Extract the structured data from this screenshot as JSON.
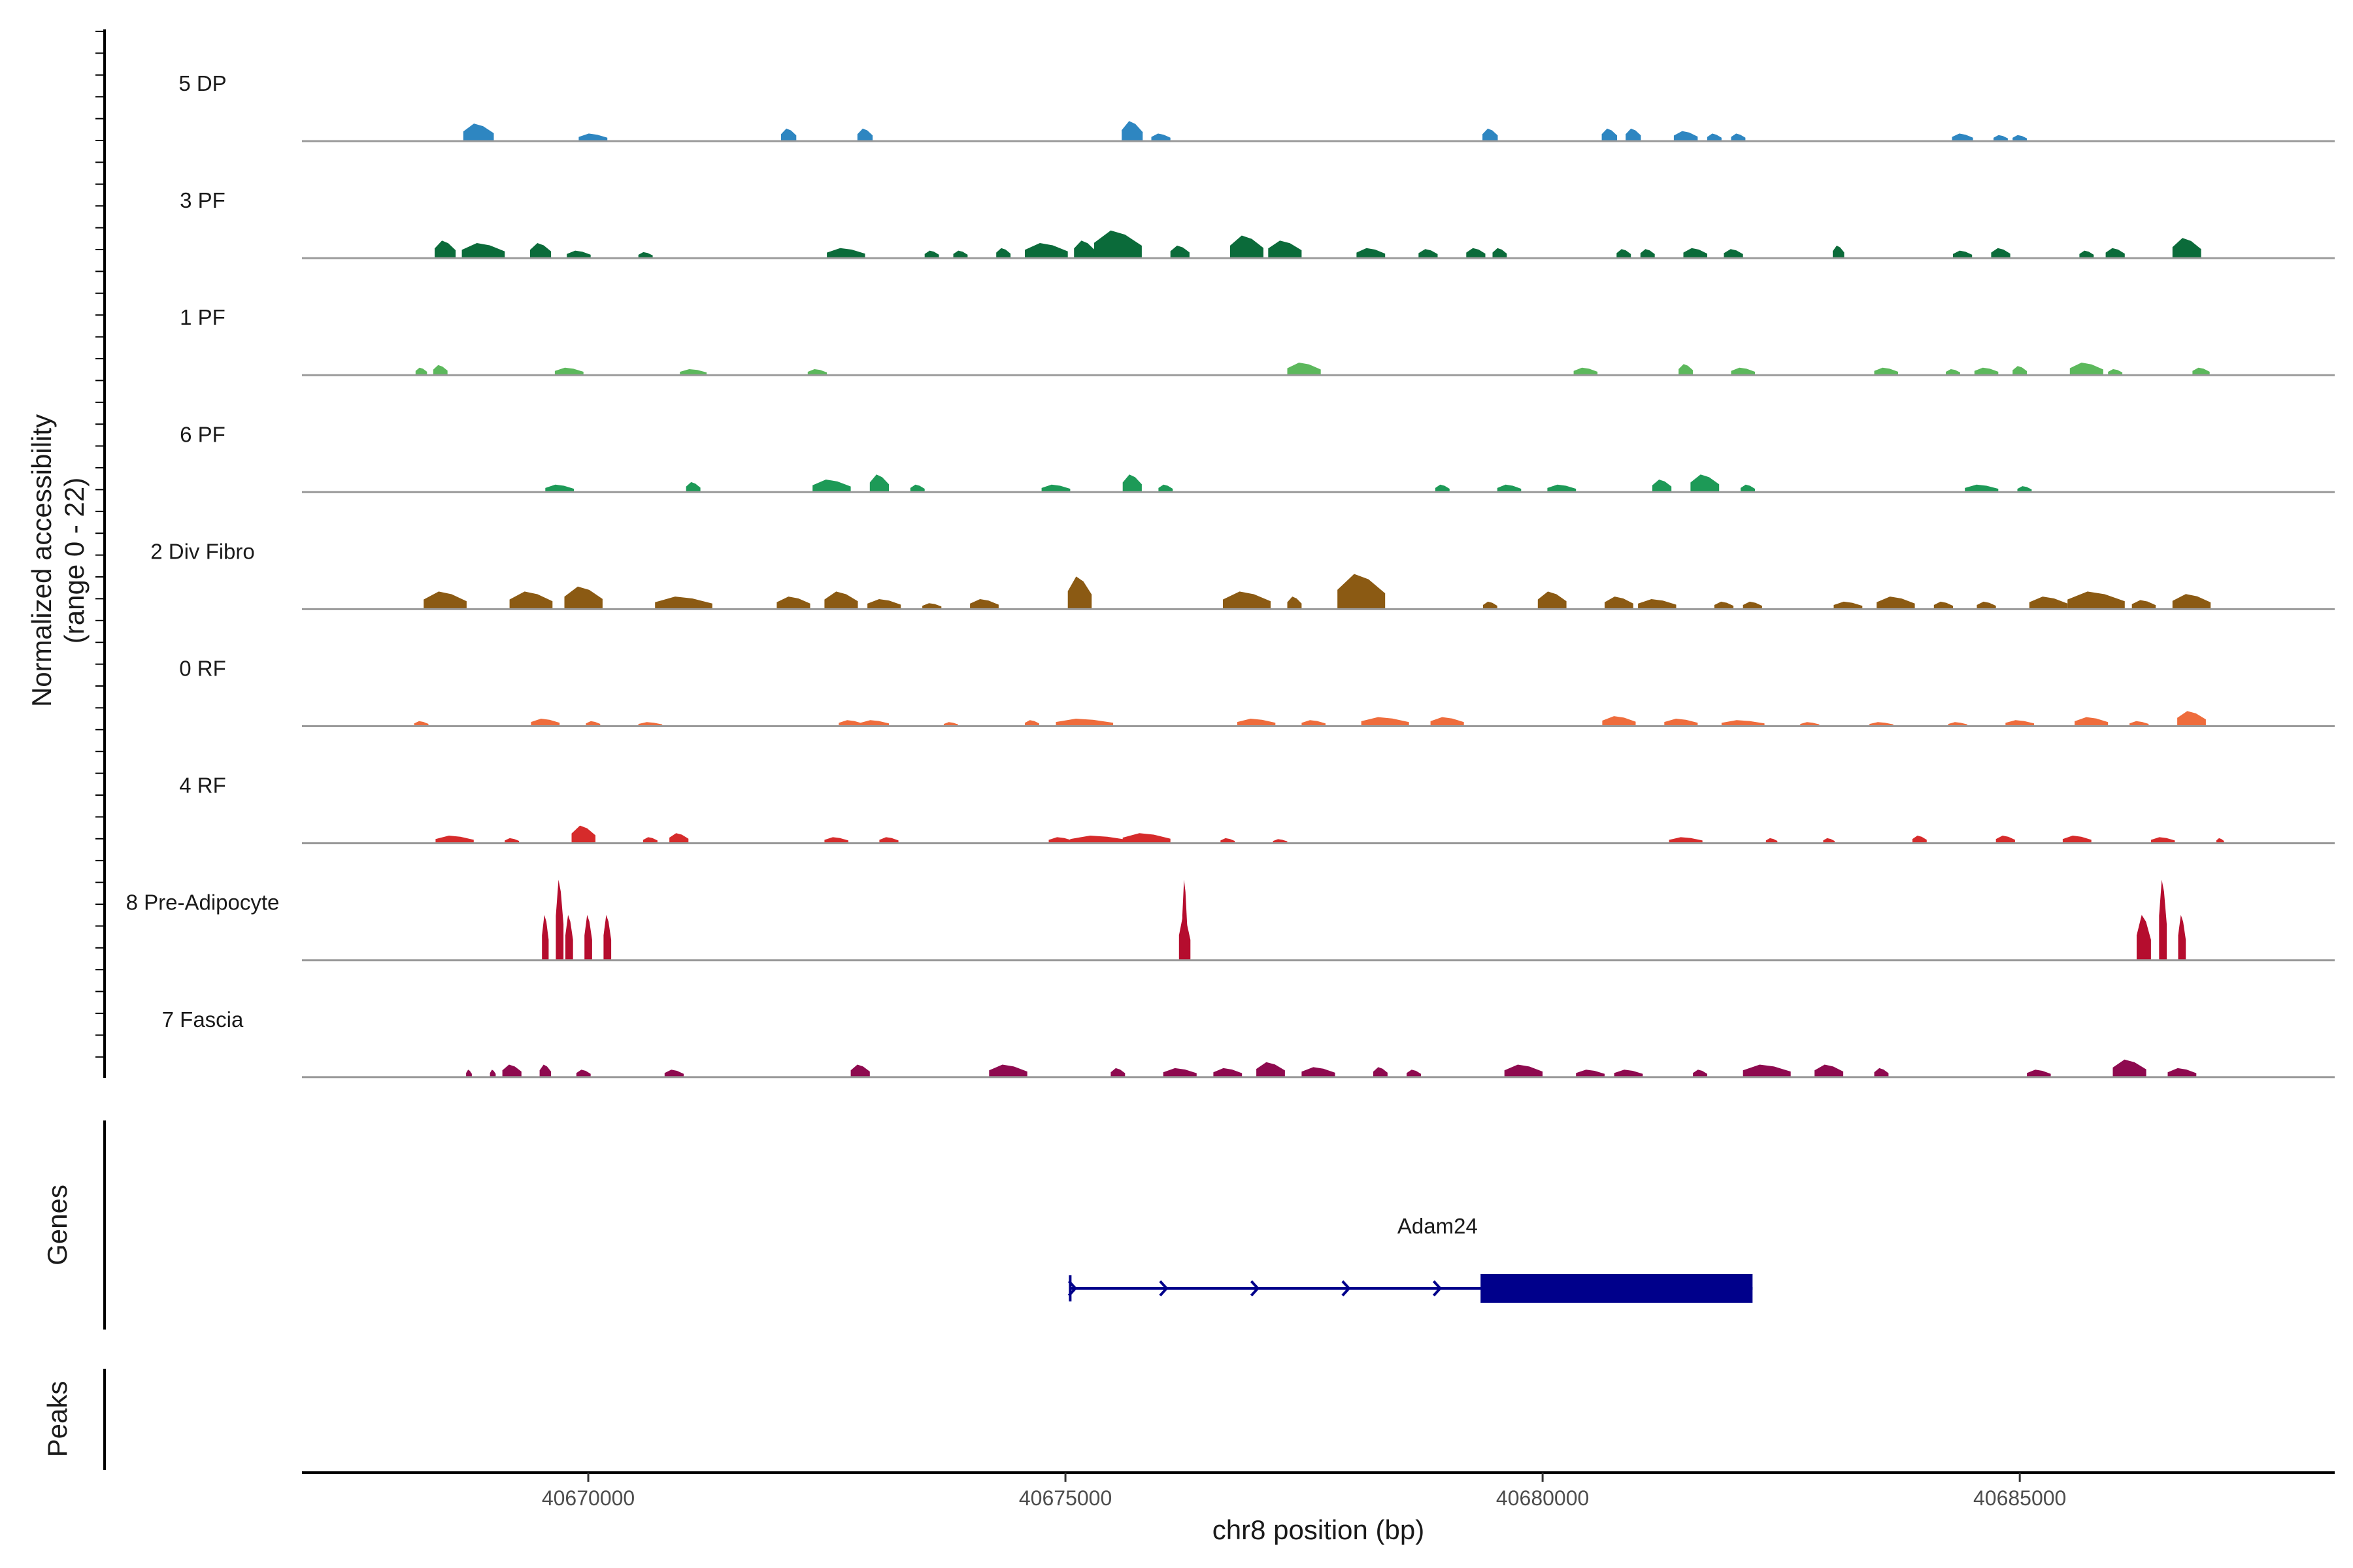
{
  "chart_data": {
    "type": "area",
    "title": "",
    "xlabel": "chr8 position (bp)",
    "ylabel": "Normalized accessibility\n(range 0 - 22)",
    "ylabel_line1": "Normalized accessibility",
    "ylabel_line2": "(range 0 - 22)",
    "ylim": [
      0,
      22
    ],
    "xlim": [
      40667000,
      40688300
    ],
    "x_ticks": [
      40670000,
      40675000,
      40680000,
      40685000
    ],
    "x_tick_labels": [
      "40670000",
      "40675000",
      "40680000",
      "40685000"
    ],
    "series": [
      {
        "name": "5 DP",
        "color": "#2e86c1",
        "peaks": [
          [
            40668850,
            3.5,
            320
          ],
          [
            40670050,
            1.5,
            300
          ],
          [
            40672100,
            2.5,
            160
          ],
          [
            40672900,
            2.5,
            160
          ],
          [
            40675700,
            4,
            220
          ],
          [
            40676000,
            1.5,
            200
          ],
          [
            40679450,
            2.5,
            160
          ],
          [
            40680700,
            2.5,
            160
          ],
          [
            40680950,
            2.5,
            160
          ],
          [
            40681500,
            2,
            250
          ],
          [
            40681800,
            1.5,
            150
          ],
          [
            40682050,
            1.5,
            150
          ],
          [
            40684400,
            1.5,
            220
          ],
          [
            40684800,
            1.2,
            150
          ],
          [
            40685000,
            1.2,
            150
          ]
        ]
      },
      {
        "name": "3 PF",
        "color": "#0b6b3a",
        "peaks": [
          [
            40668500,
            3.5,
            220
          ],
          [
            40668900,
            3,
            450
          ],
          [
            40669500,
            3,
            220
          ],
          [
            40669900,
            1.5,
            250
          ],
          [
            40670600,
            1.2,
            150
          ],
          [
            40672700,
            2,
            400
          ],
          [
            40673600,
            1.5,
            150
          ],
          [
            40673900,
            1.5,
            150
          ],
          [
            40674350,
            2,
            150
          ],
          [
            40674800,
            3,
            450
          ],
          [
            40675200,
            3.5,
            220
          ],
          [
            40675550,
            5.5,
            500
          ],
          [
            40676200,
            2.5,
            200
          ],
          [
            40676900,
            4.5,
            350
          ],
          [
            40677300,
            3.5,
            350
          ],
          [
            40678200,
            2,
            300
          ],
          [
            40678800,
            1.8,
            200
          ],
          [
            40679300,
            2,
            200
          ],
          [
            40679550,
            2,
            150
          ],
          [
            40680850,
            1.8,
            150
          ],
          [
            40681100,
            1.8,
            150
          ],
          [
            40681600,
            2,
            250
          ],
          [
            40682000,
            1.8,
            200
          ],
          [
            40683100,
            2.5,
            120
          ],
          [
            40684400,
            1.5,
            200
          ],
          [
            40684800,
            2,
            200
          ],
          [
            40685700,
            1.5,
            150
          ],
          [
            40686000,
            2,
            200
          ],
          [
            40686750,
            4,
            300
          ]
        ]
      },
      {
        "name": "1 PF",
        "color": "#5cb85c",
        "peaks": [
          [
            40668250,
            1.5,
            120
          ],
          [
            40668450,
            2,
            150
          ],
          [
            40669800,
            1.5,
            300
          ],
          [
            40671100,
            1.2,
            280
          ],
          [
            40672400,
            1.2,
            200
          ],
          [
            40677500,
            2.5,
            350
          ],
          [
            40680450,
            1.5,
            250
          ],
          [
            40681500,
            2.2,
            150
          ],
          [
            40682100,
            1.5,
            250
          ],
          [
            40683600,
            1.5,
            250
          ],
          [
            40684300,
            1.2,
            150
          ],
          [
            40684650,
            1.5,
            250
          ],
          [
            40685000,
            1.8,
            150
          ],
          [
            40685700,
            2.5,
            350
          ],
          [
            40686000,
            1.2,
            150
          ],
          [
            40686900,
            1.5,
            180
          ]
        ]
      },
      {
        "name": "6 PF",
        "color": "#1d9a57",
        "peaks": [
          [
            40669700,
            1.5,
            300
          ],
          [
            40671100,
            2,
            150
          ],
          [
            40672550,
            2.5,
            400
          ],
          [
            40673050,
            3.5,
            200
          ],
          [
            40673450,
            1.5,
            150
          ],
          [
            40674900,
            1.5,
            300
          ],
          [
            40675700,
            3.5,
            200
          ],
          [
            40676050,
            1.5,
            150
          ],
          [
            40678950,
            1.5,
            150
          ],
          [
            40679650,
            1.5,
            250
          ],
          [
            40680200,
            1.5,
            300
          ],
          [
            40681250,
            2.5,
            200
          ],
          [
            40681700,
            3.5,
            300
          ],
          [
            40682150,
            1.5,
            150
          ],
          [
            40684600,
            1.5,
            350
          ],
          [
            40685050,
            1.2,
            150
          ]
        ]
      },
      {
        "name": "2 Div Fibro",
        "color": "#8b5a13",
        "peaks": [
          [
            40668500,
            3.5,
            450
          ],
          [
            40669400,
            3.5,
            450
          ],
          [
            40669950,
            4.5,
            400
          ],
          [
            40671000,
            2.5,
            600
          ],
          [
            40672150,
            2.5,
            350
          ],
          [
            40672650,
            3.5,
            350
          ],
          [
            40673100,
            2,
            350
          ],
          [
            40673600,
            1.2,
            200
          ],
          [
            40674150,
            2,
            300
          ],
          [
            40675150,
            6.5,
            250
          ],
          [
            40676900,
            3.5,
            500
          ],
          [
            40677400,
            2.5,
            150
          ],
          [
            40678100,
            7,
            500
          ],
          [
            40679450,
            1.5,
            150
          ],
          [
            40680100,
            3.5,
            300
          ],
          [
            40680800,
            2.5,
            300
          ],
          [
            40681200,
            2,
            400
          ],
          [
            40681900,
            1.5,
            200
          ],
          [
            40682200,
            1.5,
            200
          ],
          [
            40683200,
            1.5,
            300
          ],
          [
            40683700,
            2.5,
            400
          ],
          [
            40684200,
            1.5,
            200
          ],
          [
            40684650,
            1.5,
            200
          ],
          [
            40685300,
            2.5,
            400
          ],
          [
            40685800,
            3.5,
            600
          ],
          [
            40686300,
            1.8,
            250
          ],
          [
            40686800,
            3,
            400
          ]
        ]
      },
      {
        "name": "0 RF",
        "color": "#ee6c3c",
        "peaks": [
          [
            40668250,
            1,
            150
          ],
          [
            40669550,
            1.5,
            300
          ],
          [
            40670050,
            1,
            150
          ],
          [
            40670650,
            0.8,
            250
          ],
          [
            40672750,
            1.2,
            250
          ],
          [
            40673000,
            1.2,
            300
          ],
          [
            40673800,
            0.8,
            150
          ],
          [
            40674650,
            1.2,
            150
          ],
          [
            40675200,
            1.5,
            600
          ],
          [
            40677000,
            1.5,
            400
          ],
          [
            40677600,
            1.2,
            250
          ],
          [
            40678350,
            1.8,
            500
          ],
          [
            40679000,
            1.8,
            350
          ],
          [
            40680800,
            2,
            350
          ],
          [
            40681450,
            1.5,
            350
          ],
          [
            40682100,
            1.2,
            450
          ],
          [
            40682800,
            0.8,
            200
          ],
          [
            40683550,
            0.8,
            250
          ],
          [
            40684350,
            0.8,
            200
          ],
          [
            40685000,
            1.2,
            300
          ],
          [
            40685750,
            1.8,
            350
          ],
          [
            40686250,
            1,
            200
          ],
          [
            40686800,
            3,
            300
          ]
        ]
      },
      {
        "name": "4 RF",
        "color": "#d62b2b",
        "peaks": [
          [
            40668600,
            1.5,
            400
          ],
          [
            40669200,
            1,
            150
          ],
          [
            40669950,
            3.5,
            250
          ],
          [
            40670650,
            1.2,
            150
          ],
          [
            40670950,
            2,
            200
          ],
          [
            40672600,
            1.2,
            250
          ],
          [
            40673150,
            1.2,
            200
          ],
          [
            40674950,
            1.2,
            250
          ],
          [
            40675350,
            1.5,
            600
          ],
          [
            40675850,
            2,
            500
          ],
          [
            40676700,
            1,
            150
          ],
          [
            40677250,
            0.8,
            150
          ],
          [
            40681500,
            1.2,
            350
          ],
          [
            40682400,
            1,
            120
          ],
          [
            40683000,
            1,
            120
          ],
          [
            40683950,
            1.5,
            150
          ],
          [
            40684850,
            1.5,
            200
          ],
          [
            40685600,
            1.5,
            300
          ],
          [
            40686500,
            1.2,
            250
          ],
          [
            40687100,
            1,
            80
          ]
        ]
      },
      {
        "name": "8 Pre-Adipocyte",
        "color": "#b50d2e",
        "peaks": [
          [
            40669550,
            9,
            70
          ],
          [
            40669700,
            16,
            80
          ],
          [
            40669800,
            9,
            80
          ],
          [
            40670000,
            9,
            80
          ],
          [
            40670200,
            9,
            80
          ],
          [
            40676250,
            16,
            50
          ],
          [
            40676250,
            9,
            120
          ],
          [
            40686300,
            9,
            150
          ],
          [
            40686500,
            16,
            80
          ],
          [
            40686700,
            9,
            80
          ]
        ]
      },
      {
        "name": "7 Fascia",
        "color": "#8e0a4f",
        "peaks": [
          [
            40668750,
            1.5,
            60
          ],
          [
            40669000,
            1.5,
            60
          ],
          [
            40669200,
            2.5,
            200
          ],
          [
            40669550,
            2.5,
            120
          ],
          [
            40669950,
            1.5,
            150
          ],
          [
            40670900,
            1.5,
            200
          ],
          [
            40672850,
            2.5,
            200
          ],
          [
            40674400,
            2.5,
            400
          ],
          [
            40675550,
            1.8,
            150
          ],
          [
            40676200,
            1.8,
            350
          ],
          [
            40676700,
            1.8,
            300
          ],
          [
            40677150,
            3,
            300
          ],
          [
            40677650,
            2,
            350
          ],
          [
            40678300,
            2,
            150
          ],
          [
            40678650,
            1.5,
            150
          ],
          [
            40679800,
            2.5,
            400
          ],
          [
            40680500,
            1.5,
            300
          ],
          [
            40680900,
            1.5,
            300
          ],
          [
            40681650,
            1.5,
            150
          ],
          [
            40682350,
            2.5,
            500
          ],
          [
            40683000,
            2.5,
            300
          ],
          [
            40683550,
            1.8,
            150
          ],
          [
            40685200,
            1.5,
            250
          ],
          [
            40686150,
            3.5,
            350
          ],
          [
            40686700,
            1.8,
            300
          ]
        ]
      }
    ],
    "gene_track_label": "Genes",
    "genes": [
      {
        "name": "Adam24",
        "start": 40675050,
        "end": 40682200,
        "cds_start": 40679350,
        "cds_end": 40682200,
        "strand": "+",
        "color": "#00008b"
      }
    ],
    "peaks_track_label": "Peaks"
  }
}
